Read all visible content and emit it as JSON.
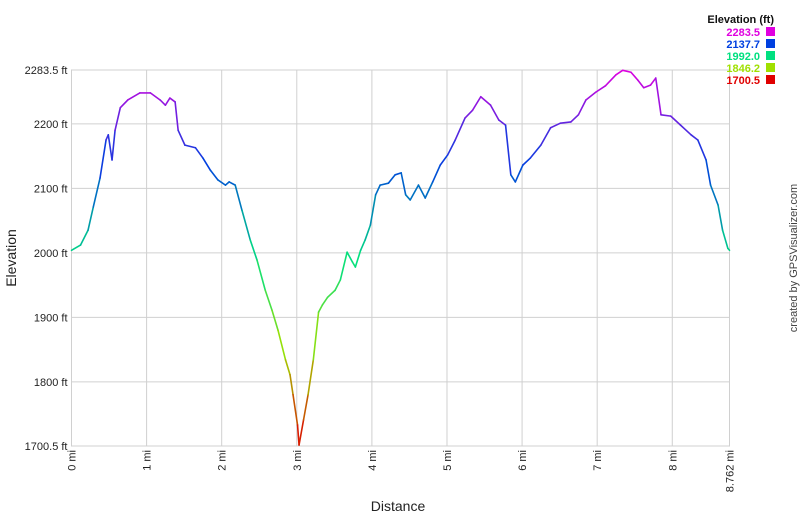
{
  "chart_data": {
    "type": "line",
    "title": "",
    "xlabel": "Distance",
    "ylabel": "Elevation",
    "xlim": [
      0,
      8.762
    ],
    "ylim": [
      1700.5,
      2283.5
    ],
    "x_ticks": [
      "0 mi",
      "1 mi",
      "2 mi",
      "3 mi",
      "4 mi",
      "5 mi",
      "6 mi",
      "7 mi",
      "8 mi",
      "8.762 mi"
    ],
    "x_tick_values": [
      0,
      1,
      2,
      3,
      4,
      5,
      6,
      7,
      8,
      8.762
    ],
    "y_ticks": [
      "2283.5 ft",
      "2200 ft",
      "2100 ft",
      "2000 ft",
      "1900 ft",
      "1800 ft",
      "1700.5 ft"
    ],
    "y_tick_values": [
      2283.5,
      2200,
      2100,
      2000,
      1900,
      1800,
      1700.5
    ],
    "grid": true,
    "legend": {
      "title": "Elevation (ft)",
      "placement": "top-right",
      "entries": [
        {
          "label": "2283.5",
          "color": "#e000e0",
          "value": 2283.5
        },
        {
          "label": "2137.7",
          "color": "#0040e0",
          "value": 2137.7
        },
        {
          "label": "1992.0",
          "color": "#00e080",
          "value": 1992.0
        },
        {
          "label": "1846.2",
          "color": "#a0e000",
          "value": 1846.2
        },
        {
          "label": "1700.5",
          "color": "#e00000",
          "value": 1700.5
        }
      ]
    },
    "series": [
      {
        "x": [
          0,
          0.12,
          0.22,
          0.29,
          0.38,
          0.46,
          0.49,
          0.54,
          0.58,
          0.65,
          0.75,
          0.91,
          1.05,
          1.18,
          1.25,
          1.31,
          1.38,
          1.42,
          1.51,
          1.65,
          1.75,
          1.85,
          1.95,
          2.05,
          2.1,
          2.18,
          2.27,
          2.38,
          2.47,
          2.58,
          2.67,
          2.75,
          2.85,
          2.91,
          2.95,
          3.01,
          3.03,
          3.09,
          3.15,
          3.22,
          3.29,
          3.34,
          3.41,
          3.51,
          3.58,
          3.67,
          3.74,
          3.78,
          3.85,
          3.91,
          3.98,
          4.05,
          4.11,
          4.22,
          4.31,
          4.39,
          4.45,
          4.51,
          4.62,
          4.71,
          4.81,
          4.91,
          5.01,
          5.11,
          5.24,
          5.34,
          5.45,
          5.58,
          5.69,
          5.78,
          5.85,
          5.91,
          6.01,
          6.11,
          6.25,
          6.38,
          6.51,
          6.65,
          6.75,
          6.85,
          6.98,
          7.11,
          7.25,
          7.34,
          7.45,
          7.54,
          7.62,
          7.71,
          7.78,
          7.85,
          7.98,
          8.11,
          8.25,
          8.34,
          8.45,
          8.51,
          8.61,
          8.67,
          8.74,
          8.762
        ],
        "y": [
          2004,
          2012,
          2035,
          2071,
          2116,
          2175,
          2183,
          2144,
          2190,
          2225,
          2237,
          2248,
          2248,
          2237,
          2229,
          2240,
          2234,
          2190,
          2167,
          2163,
          2147,
          2128,
          2113,
          2105,
          2110,
          2105,
          2066,
          2020,
          1989,
          1942,
          1911,
          1880,
          1834,
          1811,
          1780,
          1733,
          1702,
          1741,
          1780,
          1834,
          1908,
          1919,
          1931,
          1942,
          1958,
          2001,
          1986,
          1978,
          2004,
          2020,
          2043,
          2090,
          2105,
          2108,
          2121,
          2124,
          2090,
          2082,
          2105,
          2085,
          2110,
          2136,
          2152,
          2175,
          2209,
          2221,
          2242,
          2229,
          2206,
          2198,
          2121,
          2110,
          2136,
          2147,
          2167,
          2194,
          2201,
          2203,
          2214,
          2237,
          2249,
          2259,
          2276,
          2283,
          2280,
          2268,
          2256,
          2260,
          2271,
          2214,
          2212,
          2198,
          2183,
          2175,
          2144,
          2105,
          2074,
          2035,
          2007,
          2004
        ]
      }
    ]
  },
  "credit": "created by GPSVisualizer.com"
}
